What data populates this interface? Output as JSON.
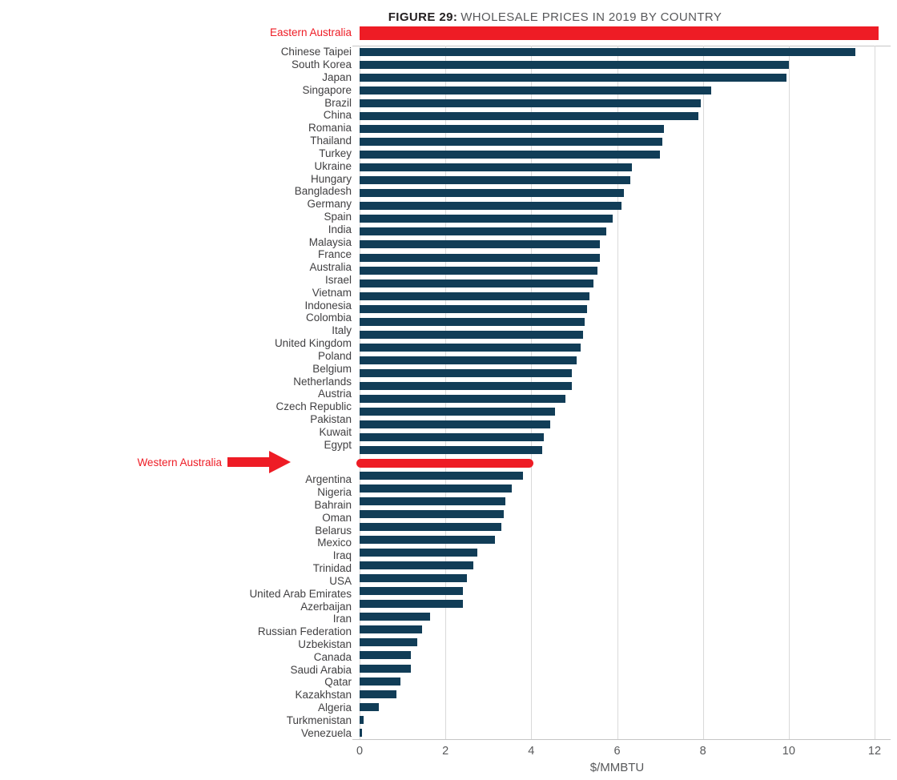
{
  "title": {
    "prefix": "FIGURE 29:",
    "text": "WHOLESALE PRICES IN 2019 BY COUNTRY"
  },
  "colors": {
    "bar": "#113d57",
    "red": "#ee1c25",
    "title_dark": "#231f20",
    "title_gray": "#58595b",
    "label": "#414042",
    "axis_text": "#58595b",
    "grid": "#d9d9d9",
    "axis_line": "#c6c6c6"
  },
  "chart_data": {
    "type": "bar",
    "orientation": "horizontal",
    "title": "FIGURE 29: WHOLESALE PRICES IN 2019 BY COUNTRY",
    "xlabel": "$/MMBTU",
    "xlim": [
      0,
      12
    ],
    "x_ticks": [
      0,
      2,
      4,
      6,
      8,
      10,
      12
    ],
    "grid": "vertical",
    "legend": "none",
    "highlight_note": "Eastern Australia and Western Australia shown as red annotation bars",
    "rows": [
      {
        "label": "Eastern Australia",
        "value": 12.1,
        "red": true,
        "position": "above"
      },
      {
        "label": "Chinese Taipei",
        "value": 11.55
      },
      {
        "label": "South Korea",
        "value": 10.0
      },
      {
        "label": "Japan",
        "value": 9.95
      },
      {
        "label": "Singapore",
        "value": 8.2
      },
      {
        "label": "Brazil",
        "value": 7.95
      },
      {
        "label": "China",
        "value": 7.9
      },
      {
        "label": "Romania",
        "value": 7.1
      },
      {
        "label": "Thailand",
        "value": 7.05
      },
      {
        "label": "Turkey",
        "value": 7.0
      },
      {
        "label": "Ukraine",
        "value": 6.35
      },
      {
        "label": "Hungary",
        "value": 6.3
      },
      {
        "label": "Bangladesh",
        "value": 6.15
      },
      {
        "label": "Germany",
        "value": 6.1
      },
      {
        "label": "Spain",
        "value": 5.9
      },
      {
        "label": "India",
        "value": 5.75
      },
      {
        "label": "Malaysia",
        "value": 5.6
      },
      {
        "label": "France",
        "value": 5.6
      },
      {
        "label": "Australia",
        "value": 5.55
      },
      {
        "label": "Israel",
        "value": 5.45
      },
      {
        "label": "Vietnam",
        "value": 5.35
      },
      {
        "label": "Indonesia",
        "value": 5.3
      },
      {
        "label": "Colombia",
        "value": 5.25
      },
      {
        "label": "Italy",
        "value": 5.2
      },
      {
        "label": "United Kingdom",
        "value": 5.15
      },
      {
        "label": "Poland",
        "value": 5.05
      },
      {
        "label": "Belgium",
        "value": 4.95
      },
      {
        "label": "Netherlands",
        "value": 4.95
      },
      {
        "label": "Austria",
        "value": 4.8
      },
      {
        "label": "Czech Republic",
        "value": 4.55
      },
      {
        "label": "Pakistan",
        "value": 4.45
      },
      {
        "label": "Kuwait",
        "value": 4.3
      },
      {
        "label": "Egypt",
        "value": 4.25
      },
      {
        "label": "Western Australia",
        "value": 4.05,
        "red": true,
        "annotation": true
      },
      {
        "label": "Argentina",
        "value": 3.8
      },
      {
        "label": "Nigeria",
        "value": 3.55
      },
      {
        "label": "Bahrain",
        "value": 3.4
      },
      {
        "label": "Oman",
        "value": 3.35
      },
      {
        "label": "Belarus",
        "value": 3.3
      },
      {
        "label": "Mexico",
        "value": 3.15
      },
      {
        "label": "Iraq",
        "value": 2.75
      },
      {
        "label": "Trinidad",
        "value": 2.65
      },
      {
        "label": "USA",
        "value": 2.5
      },
      {
        "label": "United Arab Emirates",
        "value": 2.4
      },
      {
        "label": "Azerbaijan",
        "value": 2.4
      },
      {
        "label": "Iran",
        "value": 1.65
      },
      {
        "label": "Russian Federation",
        "value": 1.45
      },
      {
        "label": "Uzbekistan",
        "value": 1.35
      },
      {
        "label": "Canada",
        "value": 1.2
      },
      {
        "label": "Saudi Arabia",
        "value": 1.2
      },
      {
        "label": "Qatar",
        "value": 0.95
      },
      {
        "label": "Kazakhstan",
        "value": 0.85
      },
      {
        "label": "Algeria",
        "value": 0.45
      },
      {
        "label": "Turkmenistan",
        "value": 0.1
      },
      {
        "label": "Venezuela",
        "value": 0.05
      }
    ]
  }
}
